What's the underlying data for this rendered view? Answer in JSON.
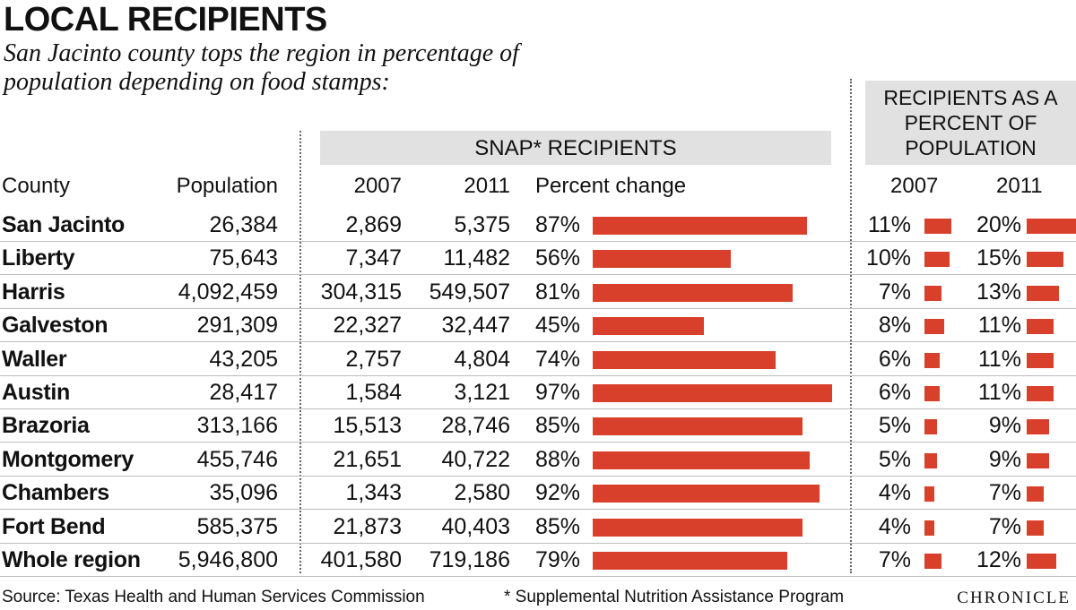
{
  "header": {
    "title": "LOCAL RECIPIENTS",
    "subtitle": "San Jacinto county tops the region in percentage of population depending on food stamps:"
  },
  "group_headers": {
    "snap": "SNAP* RECIPIENTS",
    "percent_of_pop": "RECIPIENTS AS A PERCENT OF POPULATION"
  },
  "columns": {
    "county": "County",
    "population": "Population",
    "snap_2007": "2007",
    "snap_2011": "2011",
    "percent_change": "Percent change",
    "pct_2007": "2007",
    "pct_2011": "2011"
  },
  "chart_data": {
    "type": "table",
    "title": "LOCAL RECIPIENTS",
    "accent_color": "#d9402b",
    "rows": [
      {
        "county": "San Jacinto",
        "population": "26,384",
        "snap_2007": "2,869",
        "snap_2011": "5,375",
        "percent_change": "87%",
        "change_value": 87,
        "pct_2007": "11%",
        "pct_2007_value": 11,
        "pct_2011": "20%",
        "pct_2011_value": 20
      },
      {
        "county": "Liberty",
        "population": "75,643",
        "snap_2007": "7,347",
        "snap_2011": "11,482",
        "percent_change": "56%",
        "change_value": 56,
        "pct_2007": "10%",
        "pct_2007_value": 10,
        "pct_2011": "15%",
        "pct_2011_value": 15
      },
      {
        "county": "Harris",
        "population": "4,092,459",
        "snap_2007": "304,315",
        "snap_2011": "549,507",
        "percent_change": "81%",
        "change_value": 81,
        "pct_2007": "7%",
        "pct_2007_value": 7,
        "pct_2011": "13%",
        "pct_2011_value": 13
      },
      {
        "county": "Galveston",
        "population": "291,309",
        "snap_2007": "22,327",
        "snap_2011": "32,447",
        "percent_change": "45%",
        "change_value": 45,
        "pct_2007": "8%",
        "pct_2007_value": 8,
        "pct_2011": "11%",
        "pct_2011_value": 11
      },
      {
        "county": "Waller",
        "population": "43,205",
        "snap_2007": "2,757",
        "snap_2011": "4,804",
        "percent_change": "74%",
        "change_value": 74,
        "pct_2007": "6%",
        "pct_2007_value": 6,
        "pct_2011": "11%",
        "pct_2011_value": 11
      },
      {
        "county": "Austin",
        "population": "28,417",
        "snap_2007": "1,584",
        "snap_2011": "3,121",
        "percent_change": "97%",
        "change_value": 97,
        "pct_2007": "6%",
        "pct_2007_value": 6,
        "pct_2011": "11%",
        "pct_2011_value": 11
      },
      {
        "county": "Brazoria",
        "population": "313,166",
        "snap_2007": "15,513",
        "snap_2011": "28,746",
        "percent_change": "85%",
        "change_value": 85,
        "pct_2007": "5%",
        "pct_2007_value": 5,
        "pct_2011": "9%",
        "pct_2011_value": 9
      },
      {
        "county": "Montgomery",
        "population": "455,746",
        "snap_2007": "21,651",
        "snap_2011": "40,722",
        "percent_change": "88%",
        "change_value": 88,
        "pct_2007": "5%",
        "pct_2007_value": 5,
        "pct_2011": "9%",
        "pct_2011_value": 9
      },
      {
        "county": "Chambers",
        "population": "35,096",
        "snap_2007": "1,343",
        "snap_2011": "2,580",
        "percent_change": "92%",
        "change_value": 92,
        "pct_2007": "4%",
        "pct_2007_value": 4,
        "pct_2011": "7%",
        "pct_2011_value": 7
      },
      {
        "county": "Fort Bend",
        "population": "585,375",
        "snap_2007": "21,873",
        "snap_2011": "40,403",
        "percent_change": "85%",
        "change_value": 85,
        "pct_2007": "4%",
        "pct_2007_value": 4,
        "pct_2011": "7%",
        "pct_2011_value": 7
      },
      {
        "county": "Whole region",
        "population": "5,946,800",
        "snap_2007": "401,580",
        "snap_2011": "719,186",
        "percent_change": "79%",
        "change_value": 79,
        "pct_2007": "7%",
        "pct_2007_value": 7,
        "pct_2011": "12%",
        "pct_2011_value": 12
      }
    ]
  },
  "footer": {
    "source": "Source: Texas Health and Human Services Commission",
    "note": "* Supplemental Nutrition Assistance Program",
    "brand": "CHRONICLE"
  }
}
